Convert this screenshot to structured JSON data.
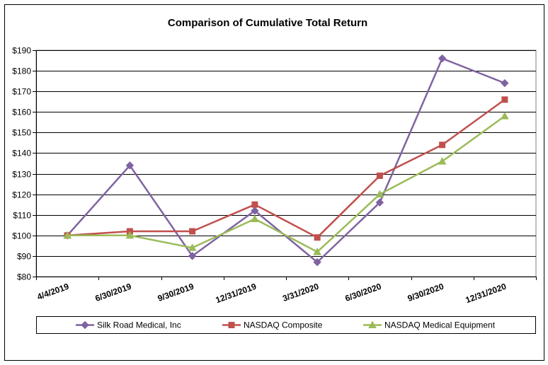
{
  "chart_data": {
    "type": "line",
    "title": "Comparison of Cumulative Total Return",
    "xlabel": "",
    "ylabel": "",
    "categories": [
      "4/4/2019",
      "6/30/2019",
      "9/30/2019",
      "12/31/2019",
      "3/31/2020",
      "6/30/2020",
      "9/30/2020",
      "12/31/2020"
    ],
    "series": [
      {
        "name": "Silk Road Medical, Inc",
        "values": [
          100,
          134,
          90,
          112,
          87,
          116,
          186,
          174
        ],
        "color": "#7F63A1",
        "marker": "diamond"
      },
      {
        "name": "NASDAQ Composite",
        "values": [
          100,
          102,
          102,
          115,
          99,
          129,
          144,
          166
        ],
        "color": "#C0504D",
        "marker": "square"
      },
      {
        "name": "NASDAQ Medical Equipment",
        "values": [
          100,
          100,
          94,
          108,
          92,
          120,
          136,
          158
        ],
        "color": "#9BBB59",
        "marker": "triangle"
      }
    ],
    "ylim": [
      80,
      190
    ],
    "yticks": [
      80,
      90,
      100,
      110,
      120,
      130,
      140,
      150,
      160,
      170,
      180,
      190
    ],
    "ytick_labels": [
      "$80",
      "$90",
      "$100",
      "$110",
      "$120",
      "$130",
      "$140",
      "$150",
      "$160",
      "$170",
      "$180",
      "$190"
    ],
    "grid": true,
    "legend": "bottom"
  }
}
